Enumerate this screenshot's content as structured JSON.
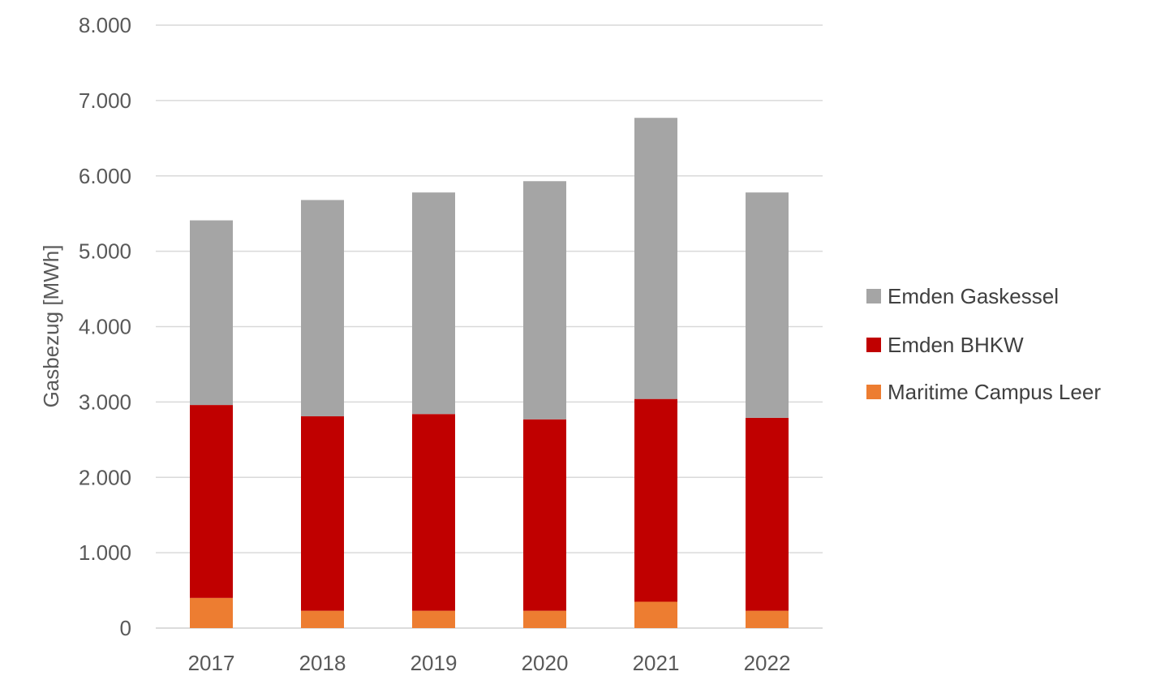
{
  "chart_data": {
    "type": "bar",
    "stacked": true,
    "categories": [
      "2017",
      "2018",
      "2019",
      "2020",
      "2021",
      "2022"
    ],
    "series": [
      {
        "name": "Maritime Campus Leer",
        "color": "#ED7D31",
        "values": [
          400,
          230,
          230,
          230,
          350,
          230
        ]
      },
      {
        "name": "Emden BHKW",
        "color": "#C00000",
        "values": [
          2560,
          2580,
          2610,
          2540,
          2690,
          2560
        ]
      },
      {
        "name": "Emden Gaskessel",
        "color": "#A5A5A5",
        "values": [
          2450,
          2870,
          2940,
          3160,
          3730,
          2990
        ]
      }
    ],
    "ylabel": "Gasbezug [MWh]",
    "ylim": [
      0,
      8000
    ],
    "yticks": [
      "0",
      "1.000",
      "2.000",
      "3.000",
      "4.000",
      "5.000",
      "6.000",
      "7.000",
      "8.000"
    ],
    "grid": true,
    "legend_position": "right",
    "legend_order": [
      "Emden Gaskessel",
      "Emden BHKW",
      "Maritime Campus Leer"
    ]
  }
}
